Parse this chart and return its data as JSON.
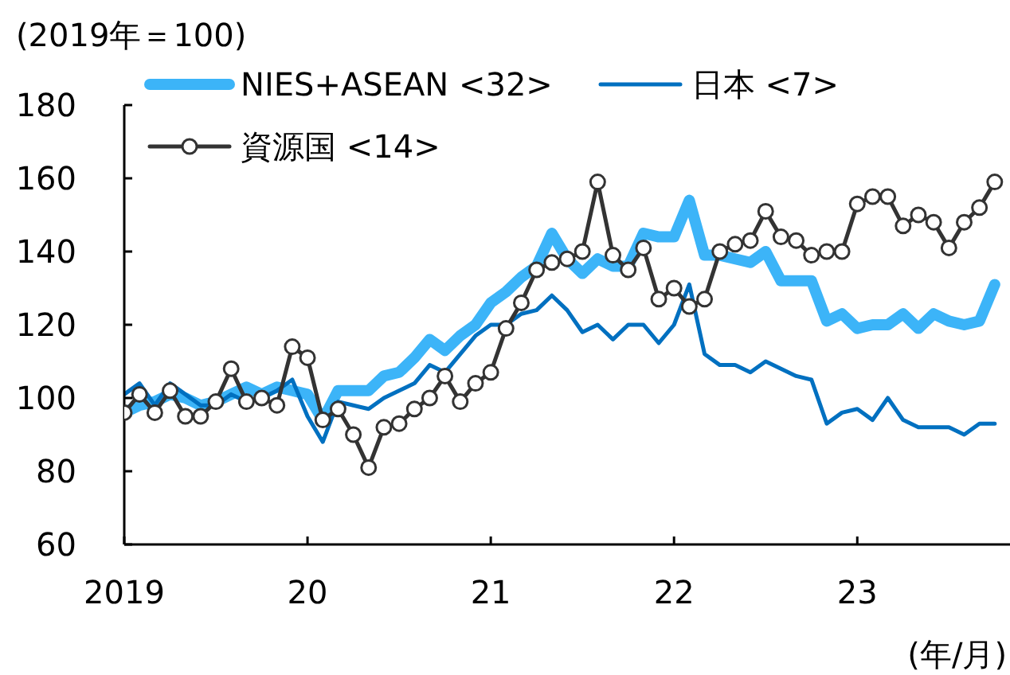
{
  "chart_data": {
    "type": "line",
    "ylabel": "(2019年＝100)",
    "xlabel": "(年/月)",
    "x": [
      "2019-01",
      "2019-02",
      "2019-03",
      "2019-04",
      "2019-05",
      "2019-06",
      "2019-07",
      "2019-08",
      "2019-09",
      "2019-10",
      "2019-11",
      "2019-12",
      "2020-01",
      "2020-02",
      "2020-03",
      "2020-04",
      "2020-05",
      "2020-06",
      "2020-07",
      "2020-08",
      "2020-09",
      "2020-10",
      "2020-11",
      "2020-12",
      "2021-01",
      "2021-02",
      "2021-03",
      "2021-04",
      "2021-05",
      "2021-06",
      "2021-07",
      "2021-08",
      "2021-09",
      "2021-10",
      "2021-11",
      "2021-12",
      "2022-01",
      "2022-02",
      "2022-03",
      "2022-04",
      "2022-05",
      "2022-06",
      "2022-07",
      "2022-08",
      "2022-09",
      "2022-10",
      "2022-11",
      "2022-12",
      "2023-01",
      "2023-02",
      "2023-03",
      "2023-04",
      "2023-05",
      "2023-06",
      "2023-07",
      "2023-08",
      "2023-09",
      "2023-10"
    ],
    "xlim": [
      "2019-01",
      "2023-11"
    ],
    "xticks": [
      {
        "value": "2019",
        "label": "2019"
      },
      {
        "value": "2020",
        "label": "20"
      },
      {
        "value": "2021",
        "label": "21"
      },
      {
        "value": "2022",
        "label": "22"
      },
      {
        "value": "2023",
        "label": "23"
      }
    ],
    "ylim": [
      60,
      180
    ],
    "yticks": [
      60,
      80,
      100,
      120,
      140,
      160,
      180
    ],
    "legend": "top left",
    "series": [
      {
        "name": "NIES+ASEAN <32>",
        "color": "#3cb4f8",
        "marker": "none",
        "values": [
          96,
          98,
          99,
          101,
          100,
          98,
          99,
          101,
          103,
          101,
          103,
          102,
          101,
          94,
          102,
          102,
          102,
          106,
          107,
          111,
          116,
          113,
          117,
          120,
          126,
          129,
          133,
          136,
          145,
          138,
          134,
          138,
          136,
          136,
          145,
          144,
          144,
          154,
          139,
          139,
          138,
          137,
          140,
          132,
          132,
          132,
          121,
          123,
          119,
          120,
          120,
          123,
          119,
          123,
          121,
          120,
          121,
          131
        ]
      },
      {
        "name": "日本 <7>",
        "color": "#0070c0",
        "marker": "none",
        "values": [
          101,
          104,
          98,
          104,
          101,
          98,
          98,
          101,
          99,
          100,
          102,
          105,
          95,
          88,
          99,
          98,
          97,
          100,
          102,
          104,
          109,
          107,
          112,
          117,
          120,
          120,
          123,
          124,
          128,
          124,
          118,
          120,
          116,
          120,
          120,
          115,
          120,
          131,
          112,
          109,
          109,
          107,
          110,
          108,
          106,
          105,
          93,
          96,
          97,
          94,
          100,
          94,
          92,
          92,
          92,
          90,
          93,
          93
        ]
      },
      {
        "name": "資源国 <14>",
        "color": "#333333",
        "marker": "circle",
        "values": [
          96,
          101,
          96,
          102,
          95,
          95,
          99,
          108,
          99,
          100,
          98,
          114,
          111,
          94,
          97,
          90,
          81,
          92,
          93,
          97,
          100,
          106,
          99,
          104,
          107,
          119,
          126,
          135,
          137,
          138,
          140,
          159,
          139,
          135,
          141,
          127,
          130,
          125,
          127,
          140,
          142,
          143,
          151,
          144,
          143,
          139,
          140,
          140,
          153,
          155,
          155,
          147,
          150,
          148,
          141,
          148,
          152,
          159
        ]
      }
    ]
  }
}
